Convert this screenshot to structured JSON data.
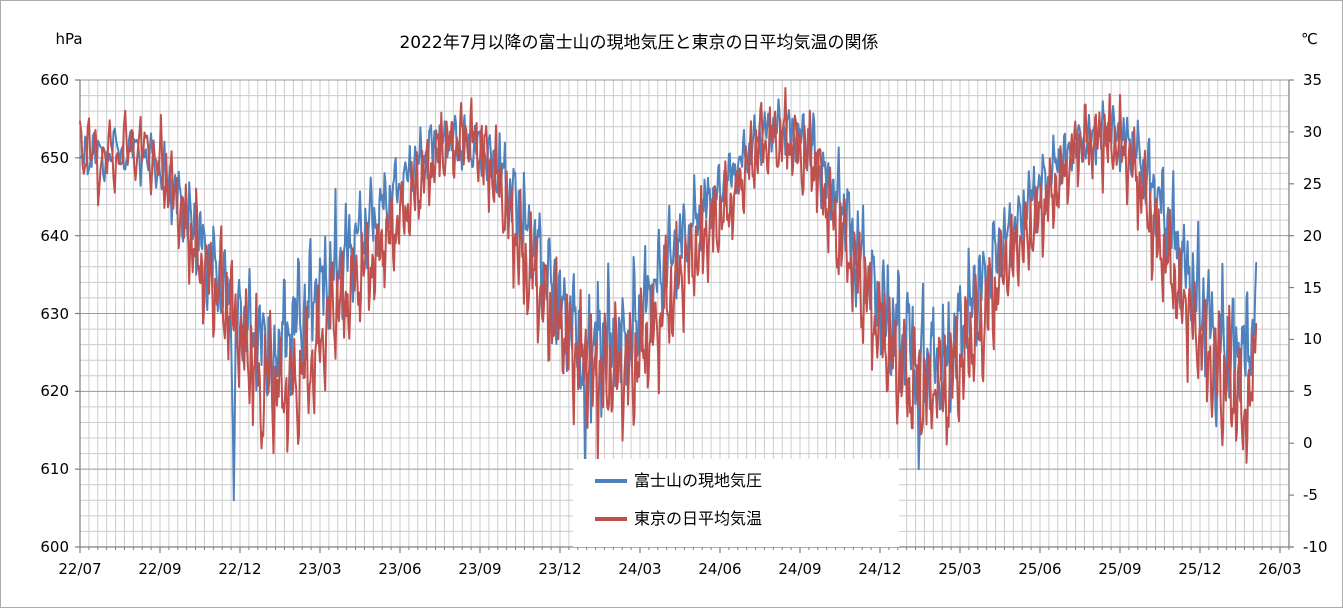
{
  "title": "2022年7月以降の富士山の現地気圧と東京の日平均気温の関係",
  "chart_data": {
    "type": "line",
    "title": "2022年7月以降の富士山の現地気圧と東京の日平均気温の関係",
    "x_axis": {
      "start_date": "2022-07-01",
      "end_date": "2026-02-04",
      "tick_labels": [
        "22/07",
        "22/09",
        "22/12",
        "23/03",
        "23/06",
        "23/09",
        "23/12",
        "24/03",
        "24/06",
        "24/09",
        "24/12",
        "25/03",
        "25/06",
        "25/09",
        "25/12",
        "26/03"
      ],
      "tick_interval": "3 months",
      "minor_gridline_interval_days": 10
    },
    "y_left_axis": {
      "unit_label": "hPa",
      "min": 600,
      "max": 660,
      "major_step": 10,
      "minor_step": 2,
      "tick_labels": [
        "660",
        "650",
        "640",
        "630",
        "620",
        "610",
        "600"
      ]
    },
    "y_right_axis": {
      "unit_label": "℃",
      "min": -10,
      "max": 35,
      "major_step": 5,
      "tick_labels": [
        "35",
        "30",
        "25",
        "20",
        "15",
        "10",
        "5",
        "0",
        "-5",
        "-10"
      ]
    },
    "grid": {
      "horizontal_minor": true,
      "vertical_minor": true,
      "legend_position": "bottom-center-overlay"
    },
    "series": [
      {
        "name": "富士山の現地気圧",
        "axis": "left",
        "unit": "hPa",
        "color": "#4F81BD",
        "monthly_means_start": "2022-07",
        "monthly_means": [
          650.5,
          651,
          646,
          639,
          632.5,
          626.5,
          627,
          629.5,
          636,
          640,
          644,
          649,
          652.5,
          652,
          649.5,
          643,
          634.5,
          628,
          625.5,
          626.5,
          632.5,
          639.5,
          644,
          648,
          653,
          654,
          651,
          644,
          635.5,
          627.5,
          625,
          623.5,
          632,
          638.5,
          644,
          648.5,
          652,
          654,
          651.5,
          644,
          635.5,
          627.5,
          624.5,
          631
        ],
        "daily_variability": 3.0,
        "seasonal_amplitude": 0.45,
        "extreme_events": [
          [
            "2022-07-01",
            650
          ],
          [
            "2022-11-24",
            606
          ],
          [
            "2023-01-08",
            616
          ],
          [
            "2023-12-30",
            611
          ],
          [
            "2025-01-15",
            610
          ],
          [
            "2025-12-20",
            615.5
          ],
          [
            "2026-02-04",
            636.5
          ]
        ]
      },
      {
        "name": "東京の日平均気温",
        "axis": "right",
        "unit": "℃",
        "color": "#C0504D",
        "monthly_means_start": "2022-07",
        "monthly_means": [
          27.5,
          28.5,
          24.5,
          17,
          13.5,
          7.5,
          5,
          6.5,
          12.5,
          16,
          19.5,
          23.5,
          28.5,
          29.5,
          26.5,
          18.5,
          13.5,
          9,
          6,
          7,
          10.5,
          16,
          20,
          23.5,
          29,
          29.5,
          27,
          20,
          13.5,
          8,
          5.5,
          5.5,
          9.5,
          16,
          20,
          24,
          29,
          29.5,
          27,
          19,
          13,
          7,
          4.5,
          6
        ],
        "daily_variability": 2.6,
        "seasonal_amplitude": 0.25,
        "extreme_events": [
          [
            "2022-07-01",
            31
          ],
          [
            "2022-12-26",
            -0.5
          ],
          [
            "2026-01-20",
            -0.6
          ],
          [
            "2026-02-04",
            11.5
          ]
        ]
      }
    ]
  },
  "colors": {
    "background": "#FFFFFF",
    "axis_line": "#808080",
    "grid_major": "#999999",
    "grid_minor": "#CCCCCC",
    "text": "#000000",
    "series_pressure": "#4F81BD",
    "series_temperature": "#C0504D"
  }
}
